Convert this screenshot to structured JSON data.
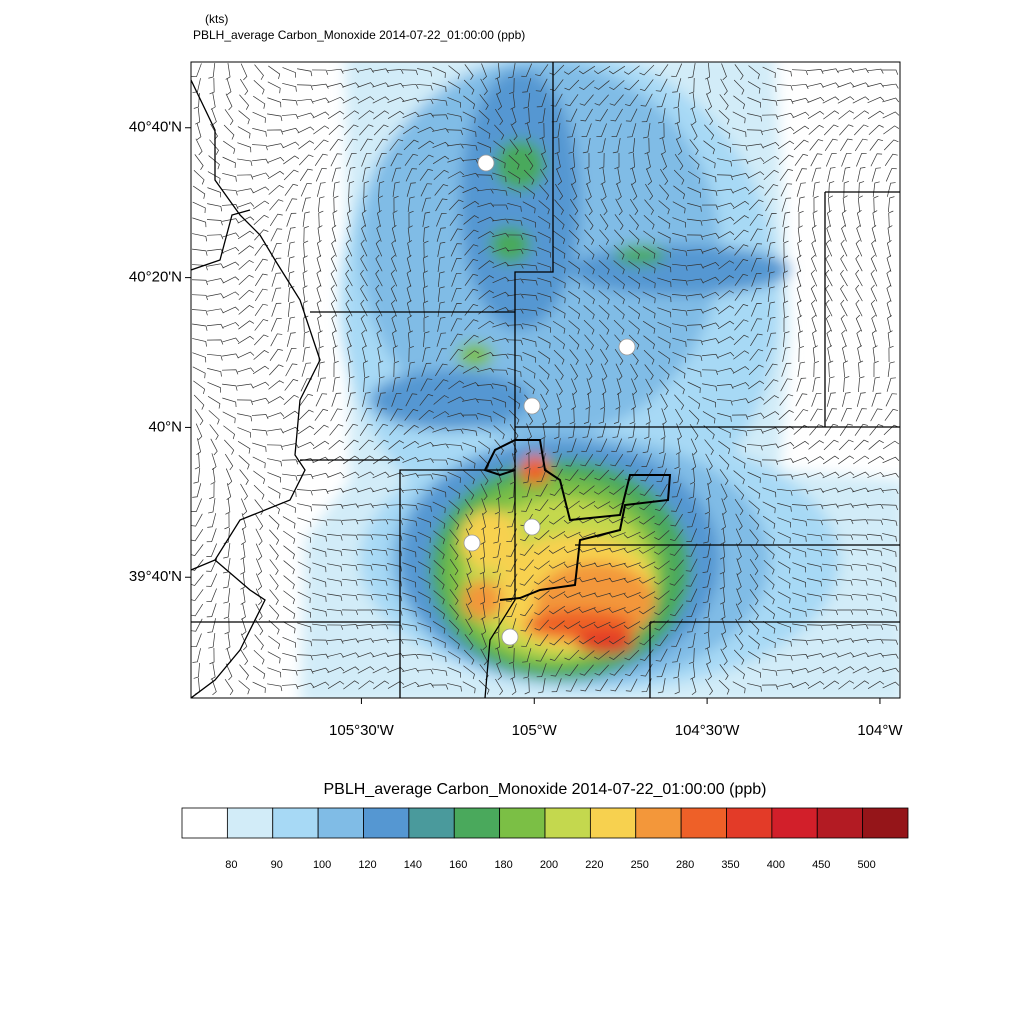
{
  "header": {
    "units": "(kts)",
    "title": "PBLH_average Carbon_Monoxide   2014-07-22_01:00:00   (ppb)"
  },
  "map": {
    "xlim": [
      -105.993,
      -103.942
    ],
    "ylim": [
      39.398,
      40.813
    ],
    "lat_ticks": [
      {
        "value": 40.6667,
        "label": "40°40'N"
      },
      {
        "value": 40.3333,
        "label": "40°20'N"
      },
      {
        "value": 40,
        "label": "40°N"
      },
      {
        "value": 39.6667,
        "label": "39°40'N"
      }
    ],
    "lon_ticks": [
      {
        "value": -105.5,
        "label": "105°30'W"
      },
      {
        "value": -105,
        "label": "105°W"
      },
      {
        "value": -104.5,
        "label": "104°30'W"
      },
      {
        "value": -104,
        "label": "104°W"
      }
    ]
  },
  "colorbar": {
    "title": "PBLH_average Carbon_Monoxide   2014-07-22_01:00:00  (ppb)",
    "levels": [
      80,
      90,
      100,
      120,
      140,
      160,
      180,
      200,
      220,
      250,
      280,
      350,
      400,
      450,
      500
    ],
    "colors": [
      "#ffffff",
      "#d2ecf8",
      "#a7d9f5",
      "#80bce6",
      "#5597d2",
      "#4a9a9c",
      "#4aa95c",
      "#7bbf45",
      "#c4d84e",
      "#f7d14f",
      "#f3973a",
      "#ee6028",
      "#e33b28",
      "#d21f2a",
      "#b31b23",
      "#951519"
    ]
  }
}
